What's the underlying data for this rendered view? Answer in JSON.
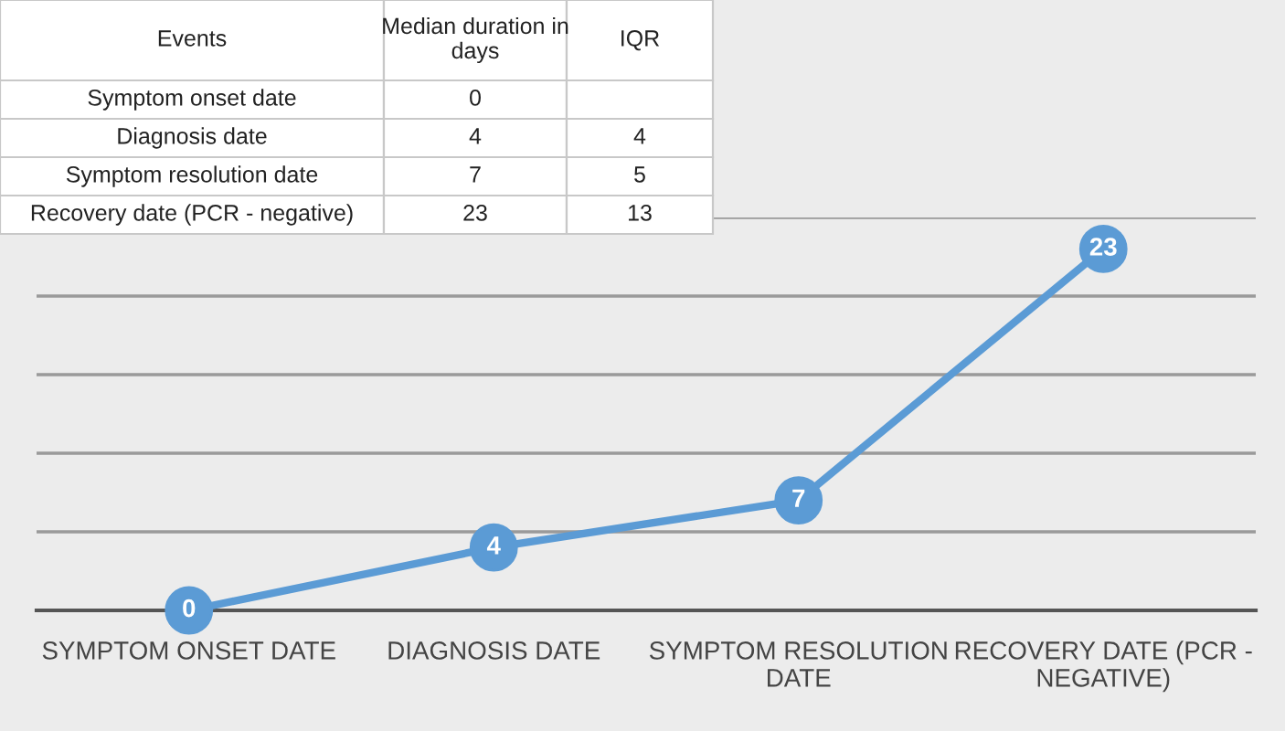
{
  "chart_data": {
    "type": "line",
    "categories": [
      "SYMPTOM ONSET DATE",
      "DIAGNOSIS DATE",
      "SYMPTOM RESOLUTION DATE",
      "RECOVERY DATE (PCR - NEGATIVE)"
    ],
    "series": [
      {
        "color": "#5b9bd5",
        "values": [
          0,
          4,
          7,
          23
        ]
      }
    ],
    "data_labels": true,
    "marker": "circle",
    "line_style": "solid",
    "grid": "y",
    "legend": false,
    "tick_labels": "x",
    "ylim": [
      0,
      25
    ],
    "yticks": [
      {
        "value": 0,
        "label": null
      },
      {
        "value": 5,
        "label": null
      },
      {
        "value": 10,
        "label": null
      },
      {
        "value": 15,
        "label": null
      },
      {
        "value": 20,
        "label": null
      },
      {
        "value": 25,
        "label": null
      }
    ],
    "annotations": [
      "Events",
      "Median duration in days",
      "IQR",
      "Symptom onset date",
      "Diagnosis date",
      "Symptom resolution date",
      "Recovery date (PCR - negative)",
      "0",
      "4",
      "7",
      "23",
      "4",
      "5",
      "13"
    ]
  }
}
